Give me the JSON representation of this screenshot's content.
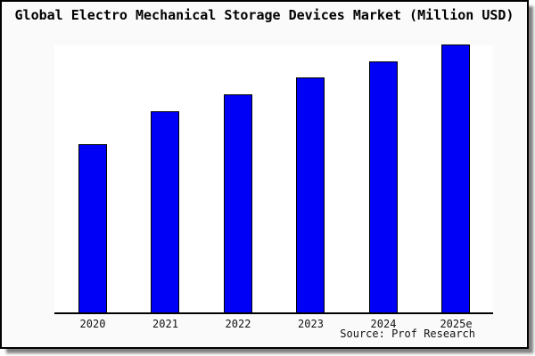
{
  "frame": {
    "background": "#fafafa",
    "border_color": "#000000",
    "shadow_color": "#3c3c3c"
  },
  "chart_data": {
    "type": "bar",
    "title": "Global Electro Mechanical Storage Devices Market (Million USD)",
    "categories": [
      "2020",
      "2021",
      "2022",
      "2023",
      "2024",
      "2025e"
    ],
    "values": [
      62.7,
      75.0,
      81.3,
      87.7,
      93.7,
      100.0
    ],
    "values_note": "y-axis has no tick labels; values are relative bar heights as percent of the tallest (2025e) bar",
    "xlabel": "",
    "ylabel": "",
    "ylim": [
      0,
      100
    ],
    "grid": false,
    "legend": false,
    "bar_color": "#0000f7",
    "bar_border_color": "#000000",
    "plot_background": "#ffffff",
    "source_label": "Source: Prof Research"
  }
}
